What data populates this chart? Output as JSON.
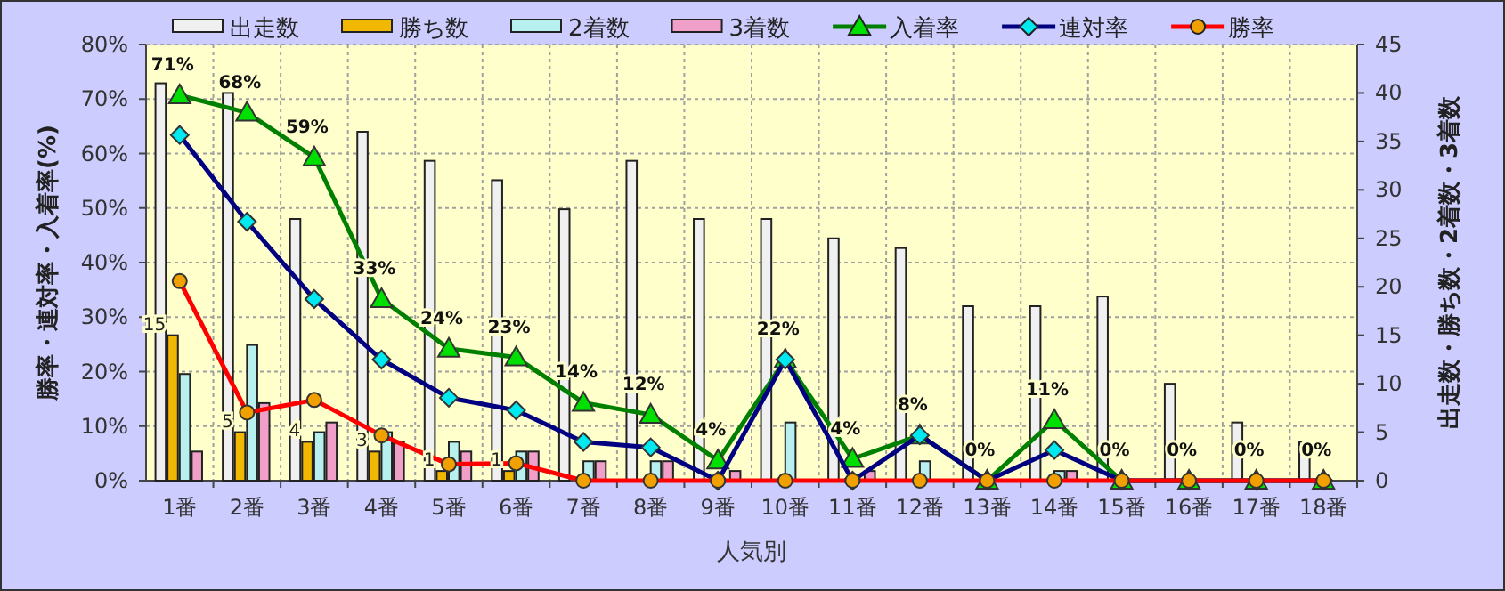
{
  "chart_data": {
    "type": "bar",
    "xlabel": "人気別",
    "ylabel": "勝率・連対率・入着率(%)",
    "y2label": "出走数・勝ち数・2着数・3着数",
    "categories": [
      "1番",
      "2番",
      "3番",
      "4番",
      "5番",
      "6番",
      "7番",
      "8番",
      "9番",
      "10番",
      "11番",
      "12番",
      "13番",
      "14番",
      "15番",
      "16番",
      "17番",
      "18番"
    ],
    "series": [
      {
        "name": "出走数",
        "axis": "y2",
        "color": "#f0f0f0",
        "values": [
          41,
          40,
          27,
          36,
          33,
          31,
          28,
          33,
          27,
          27,
          25,
          24,
          18,
          18,
          19,
          10,
          6,
          4
        ]
      },
      {
        "name": "勝ち数",
        "axis": "y2",
        "color": "#f0b800",
        "values": [
          15,
          5,
          4,
          3,
          1,
          1,
          0,
          0,
          0,
          0,
          0,
          0,
          0,
          0,
          0,
          0,
          0,
          0
        ],
        "value_labels": [
          "15",
          "5",
          "4",
          "3",
          "1",
          "1",
          null,
          null,
          null,
          null,
          null,
          null,
          null,
          null,
          null,
          null,
          null,
          null
        ]
      },
      {
        "name": "2着数",
        "axis": "y2",
        "color": "#b8f0f0",
        "values": [
          11,
          14,
          5,
          5,
          4,
          3,
          2,
          2,
          0,
          6,
          0,
          2,
          0,
          1,
          0,
          0,
          0,
          0
        ]
      },
      {
        "name": "3着数",
        "axis": "y2",
        "color": "#f0a0c8",
        "values": [
          3,
          8,
          6,
          4,
          3,
          3,
          2,
          2,
          1,
          0,
          1,
          0,
          0,
          1,
          0,
          0,
          0,
          0
        ]
      },
      {
        "name": "入着率",
        "type": "line",
        "color": "#008000",
        "marker": "triangle",
        "colors": [
          "#00e000",
          "#00e000",
          "#00e000",
          "#00e000",
          "#00e000",
          "#00e000",
          "#00e000",
          "#00e000",
          "#00e000",
          "#00e000",
          "#00e000",
          "#00e000",
          "#00e000",
          "#00e000",
          "#00e000",
          "#00e000",
          "#00e000",
          "#00e000"
        ],
        "values": [
          70.7,
          67.5,
          59.3,
          33.3,
          24.2,
          22.6,
          14.3,
          12.1,
          3.7,
          22.2,
          4.0,
          8.3,
          0,
          11.1,
          0,
          0,
          0,
          0
        ],
        "value_labels": [
          "71%",
          "68%",
          "59%",
          "33%",
          "24%",
          "23%",
          "14%",
          "12%",
          "4%",
          "22%",
          "4%",
          "8%",
          "0%",
          "11%",
          "0%",
          "0%",
          "0%",
          "0%"
        ]
      },
      {
        "name": "連対率",
        "type": "line",
        "color": "#000080",
        "marker": "diamond",
        "colors": [
          "#00e8f0",
          "#00e8f0",
          "#00e8f0",
          "#00e8f0",
          "#00e8f0",
          "#00e8f0",
          "#00e8f0",
          "#00e8f0",
          "#00e8f0",
          "#00e8f0",
          "#00e8f0",
          "#00e8f0",
          "#00e8f0",
          "#00e8f0",
          "#00e8f0",
          "#00e8f0",
          "#00e8f0",
          "#00e8f0"
        ],
        "values": [
          63.4,
          47.5,
          33.3,
          22.2,
          15.2,
          12.9,
          7.1,
          6.1,
          0,
          22.2,
          0,
          8.3,
          0,
          5.6,
          0,
          0,
          0,
          0
        ]
      },
      {
        "name": "勝率",
        "type": "line",
        "color": "#ff0000",
        "marker": "circle",
        "colors": [
          "#f0a000",
          "#f0a000",
          "#f0a000",
          "#f0a000",
          "#f0a000",
          "#f0a000",
          "#f0a000",
          "#f0a000",
          "#f0a000",
          "#f0a000",
          "#f0a000",
          "#f0a000",
          "#f0a000",
          "#f0a000",
          "#f0a000",
          "#f0a000",
          "#f0a000",
          "#f0a000"
        ],
        "values": [
          36.6,
          12.5,
          14.8,
          8.3,
          3.0,
          3.2,
          0,
          0,
          0,
          0,
          0,
          0,
          0,
          0,
          0,
          0,
          0,
          0
        ]
      }
    ],
    "ylim": [
      0,
      80
    ],
    "yticks": [
      {
        "value": 0,
        "label": "0%"
      },
      {
        "value": 10,
        "label": "10%"
      },
      {
        "value": 20,
        "label": "20%"
      },
      {
        "value": 30,
        "label": "30%"
      },
      {
        "value": 40,
        "label": "40%"
      },
      {
        "value": 50,
        "label": "50%"
      },
      {
        "value": 60,
        "label": "60%"
      },
      {
        "value": 70,
        "label": "70%"
      },
      {
        "value": 80,
        "label": "80%"
      }
    ],
    "y2lim": [
      0,
      45
    ],
    "y2ticks": [
      0,
      5,
      10,
      15,
      20,
      25,
      30,
      35,
      40,
      45
    ],
    "grid": true,
    "legend": "top"
  }
}
